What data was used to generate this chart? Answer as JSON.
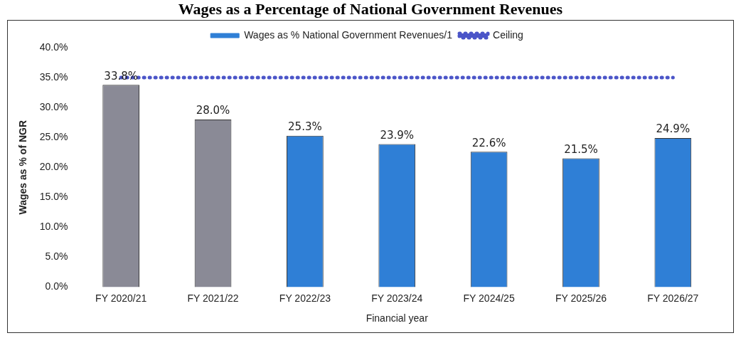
{
  "chart_data": {
    "type": "bar",
    "title": "Wages as a Percentage of National Government Revenues",
    "xlabel": "Financial year",
    "ylabel": "Wages as % of NGR",
    "categories": [
      "FY 2020/21",
      "FY 2021/22",
      "FY 2022/23",
      "FY 2023/24",
      "FY 2024/25",
      "FY 2025/26",
      "FY 2026/27"
    ],
    "series": [
      {
        "name": "Wages as % National Government Revenues/1",
        "colors": [
          "#8a8a96",
          "#8a8a96",
          "#2f7fd6",
          "#2f7fd6",
          "#2f7fd6",
          "#2f7fd6",
          "#2f7fd6"
        ],
        "color": "#2f7fd6",
        "values": [
          33.8,
          28.0,
          25.3,
          23.9,
          22.6,
          21.5,
          24.9
        ],
        "value_labels": [
          "33.8%",
          "28.0%",
          "25.3%",
          "23.9%",
          "22.6%",
          "21.5%",
          "24.9%"
        ]
      },
      {
        "name": "Ceiling",
        "type": "line",
        "color": "#4b55c8",
        "line_style": "dotted",
        "values": [
          35,
          35,
          35,
          35,
          35,
          35,
          35
        ]
      }
    ],
    "ylim": [
      0,
      40
    ],
    "yticks": [
      {
        "value": 0,
        "label": "0.0%"
      },
      {
        "value": 5,
        "label": "5.0%"
      },
      {
        "value": 10,
        "label": "10.0%"
      },
      {
        "value": 15,
        "label": "15.0%"
      },
      {
        "value": 20,
        "label": "20.0%"
      },
      {
        "value": 25,
        "label": "25.0%"
      },
      {
        "value": 30,
        "label": "30.0%"
      },
      {
        "value": 35,
        "label": "35.0%"
      },
      {
        "value": 40,
        "label": "40.0%"
      }
    ],
    "grid": false,
    "legend": "top"
  }
}
